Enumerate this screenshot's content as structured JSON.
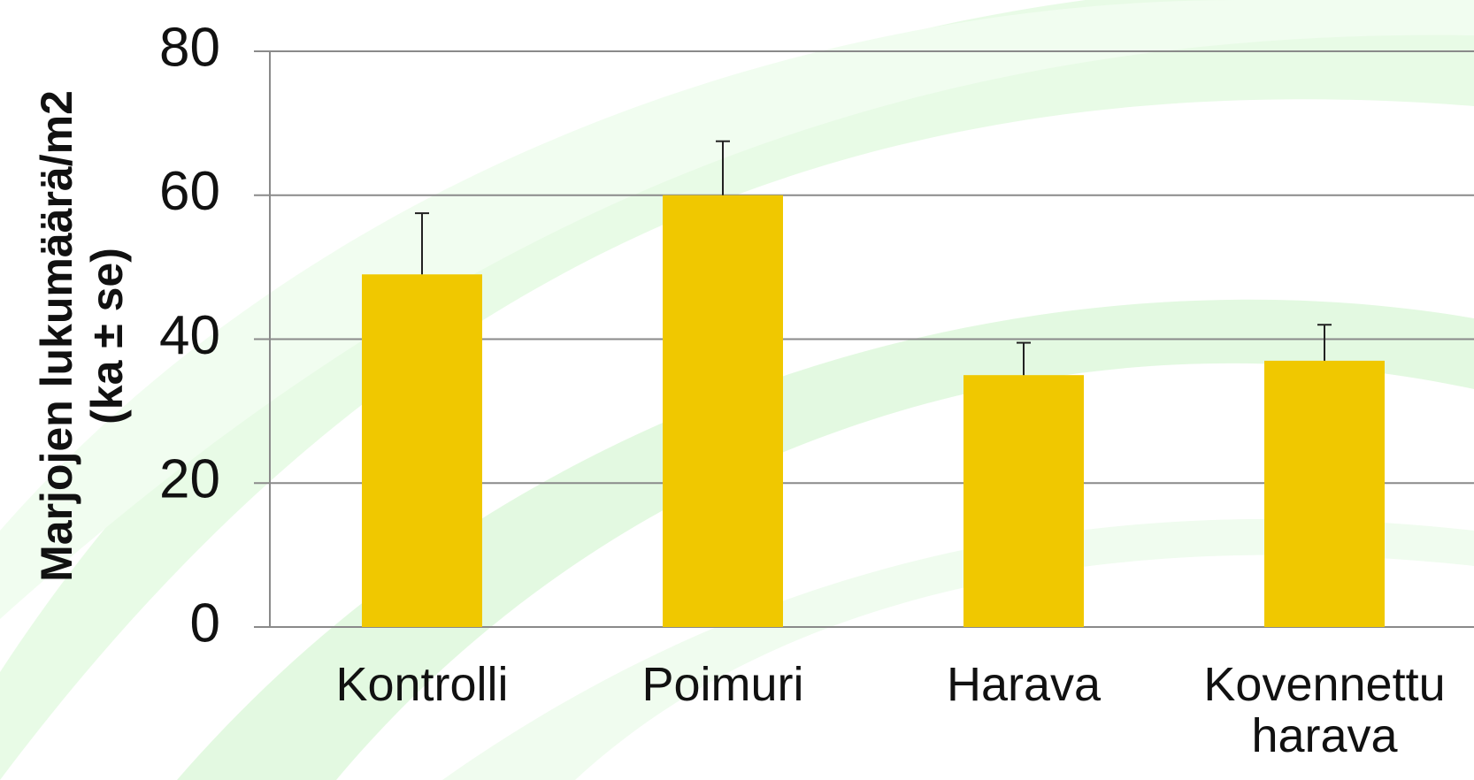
{
  "chart_data": {
    "type": "bar",
    "ylabel": [
      "Marjojen lukumäärä/m2",
      "(ka ± se)"
    ],
    "categories": [
      "Kontrolli",
      "Poimuri",
      "Harava",
      "Kovennettu harava"
    ],
    "values": [
      49,
      60,
      35,
      37
    ],
    "errors": [
      8.5,
      7.5,
      4.5,
      5
    ],
    "color": "#f0c800",
    "ylim": [
      0,
      80
    ],
    "yticks": [
      0,
      20,
      40,
      60,
      80
    ],
    "grid": true
  }
}
